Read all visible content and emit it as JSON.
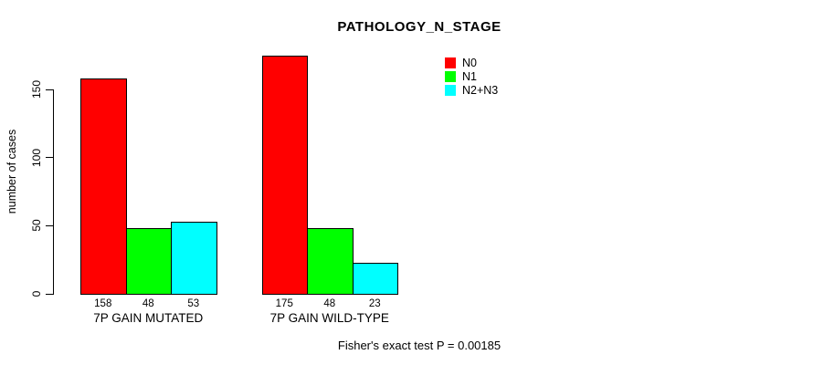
{
  "title": "PATHOLOGY_N_STAGE",
  "footer": "Fisher's exact test P = 0.00185",
  "chart_data": {
    "type": "bar",
    "title": "PATHOLOGY_N_STAGE",
    "xlabel": "",
    "ylabel": "number of cases",
    "ylim": [
      0,
      175
    ],
    "yticks": [
      0,
      50,
      100,
      150
    ],
    "grid": false,
    "legend_position": "top-right",
    "categories": [
      "7P GAIN MUTATED",
      "7P GAIN WILD-TYPE"
    ],
    "series": [
      {
        "name": "N0",
        "color": "#ff0000",
        "values": [
          158,
          175
        ]
      },
      {
        "name": "N1",
        "color": "#00ff00",
        "values": [
          48,
          48
        ]
      },
      {
        "name": "N2+N3",
        "color": "#00ffff",
        "values": [
          53,
          23
        ]
      }
    ],
    "bar_labels": [
      [
        158,
        48,
        53
      ],
      [
        175,
        48,
        23
      ]
    ],
    "annotation": "Fisher's exact test P = 0.00185"
  }
}
